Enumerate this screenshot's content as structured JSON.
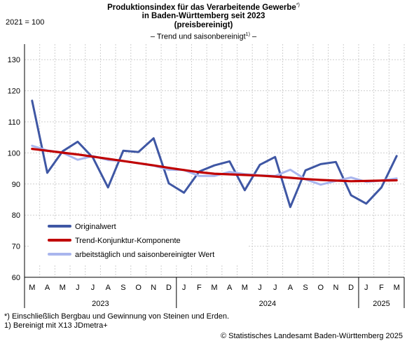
{
  "header": {
    "title_line1": "Produktionsindex für das Verarbeitende Gewerbe",
    "title_line1_mark": "*)",
    "title_line2": "in Baden-Württemberg seit 2023",
    "title_line3": "(preisbereinigt)",
    "subtitle_pre": "– Trend und saisonbereinigt",
    "subtitle_mark": "1)",
    "subtitle_post": " –",
    "baseline": "2021 = 100"
  },
  "footnotes": {
    "note1": "*) Einschließlich Bergbau und Gewinnung von Steinen und Erden.",
    "note2": "1) Bereinigt mit X13 JDmetra+",
    "source": "© Statistisches Landesamt Baden-Württemberg 2025"
  },
  "chart_data": {
    "type": "line",
    "categories": [
      "M",
      "A",
      "M",
      "J",
      "J",
      "A",
      "S",
      "O",
      "N",
      "D",
      "J",
      "F",
      "M",
      "A",
      "M",
      "J",
      "J",
      "A",
      "S",
      "O",
      "N",
      "D",
      "J",
      "F",
      "M"
    ],
    "years": [
      {
        "label": "2023",
        "start": 0,
        "end": 9
      },
      {
        "label": "2024",
        "start": 10,
        "end": 21
      },
      {
        "label": "2025",
        "start": 22,
        "end": 24
      }
    ],
    "ylim": [
      60,
      135
    ],
    "yticks": [
      60,
      70,
      80,
      90,
      100,
      110,
      120,
      130
    ],
    "grid": true,
    "legend_position": "bottom-left",
    "series": [
      {
        "name": "Originalwert",
        "color": "#3f57a4",
        "values": [
          116.8,
          93.6,
          100.5,
          103.6,
          98.5,
          88.9,
          100.7,
          100.3,
          104.7,
          90.2,
          87.2,
          94.0,
          96.0,
          97.3,
          88.0,
          96.2,
          98.7,
          82.6,
          94.4,
          96.4,
          97.1,
          86.4,
          83.7,
          88.9,
          99.0
        ]
      },
      {
        "name": "Trend-Konjunktur-Komponente",
        "color": "#c00000",
        "values": [
          101.3,
          100.7,
          100.1,
          99.5,
          98.8,
          98.1,
          97.4,
          96.7,
          96.0,
          95.2,
          94.5,
          93.8,
          93.3,
          93.1,
          92.9,
          92.7,
          92.4,
          92.0,
          91.6,
          91.3,
          91.1,
          90.9,
          91.0,
          91.1,
          91.2
        ]
      },
      {
        "name": "arbeitstäglich und saisonbereinigter Wert",
        "color": "#a9b6ee",
        "values": [
          102.3,
          100.8,
          100.1,
          97.8,
          99.0,
          97.7,
          97.4,
          96.7,
          95.9,
          94.6,
          94.5,
          92.6,
          92.6,
          93.9,
          93.2,
          92.8,
          92.6,
          94.6,
          91.5,
          89.8,
          91.0,
          92.1,
          90.7,
          91.1,
          91.8
        ]
      }
    ]
  }
}
